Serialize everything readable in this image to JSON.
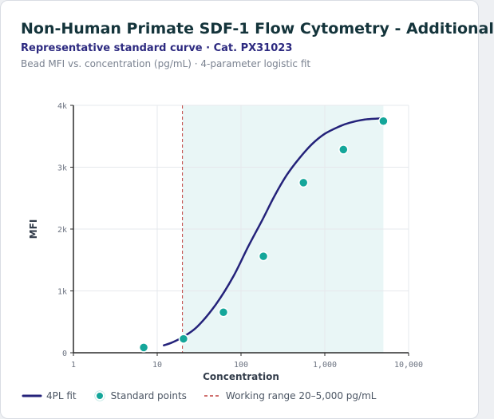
{
  "header": {
    "title": "Non-Human Primate SDF-1 Flow Cytometry - Additional",
    "subtitle": "Representative standard curve · Cat. PX31023",
    "caption": "Bead MFI vs. concentration (pg/mL) · 4-parameter logistic fit"
  },
  "colors": {
    "fit_line": "#24227a",
    "points": "#14a69a",
    "points_stroke": "#ffffff",
    "working_range_fill": "#e9f6f6",
    "working_range_line": "#c0413e",
    "grid": "#e6e8ec",
    "axis": "#2b2b2b"
  },
  "chart_data": {
    "type": "scatter",
    "xlabel": "Concentration",
    "ylabel": "MFI",
    "x_scale": "log",
    "xlim": [
      1,
      10000
    ],
    "ylim": [
      0,
      4000
    ],
    "x_ticks": [
      1,
      10,
      100,
      1000,
      10000
    ],
    "x_tick_labels": [
      "1",
      "10",
      "100",
      "1,000",
      "10,000"
    ],
    "y_ticks": [
      0,
      1000,
      2000,
      3000,
      4000
    ],
    "y_tick_labels": [
      "0",
      "1k",
      "2k",
      "3k",
      "4k"
    ],
    "grid": true,
    "series": [
      {
        "name": "4PL fit",
        "kind": "line",
        "x": [
          12,
          15,
          20,
          30,
          50,
          80,
          120,
          180,
          250,
          350,
          500,
          700,
          1000,
          1500,
          2000,
          3000,
          5000
        ],
        "y": [
          120,
          165,
          250,
          420,
          780,
          1220,
          1700,
          2150,
          2530,
          2870,
          3150,
          3370,
          3540,
          3660,
          3720,
          3770,
          3790
        ]
      },
      {
        "name": "Standard points",
        "kind": "scatter",
        "x": [
          6.9,
          20.6,
          61.7,
          185,
          556,
          1667,
          5000
        ],
        "y": [
          85,
          225,
          655,
          1560,
          2750,
          3285,
          3745
        ]
      }
    ],
    "working_range": {
      "label": "Working range 20–5,000 pg/mL",
      "from": 20,
      "to": 5000
    },
    "legend": {
      "position": "bottom",
      "items": [
        "4PL fit",
        "Standard points",
        "Working range 20–5,000 pg/mL"
      ]
    }
  }
}
